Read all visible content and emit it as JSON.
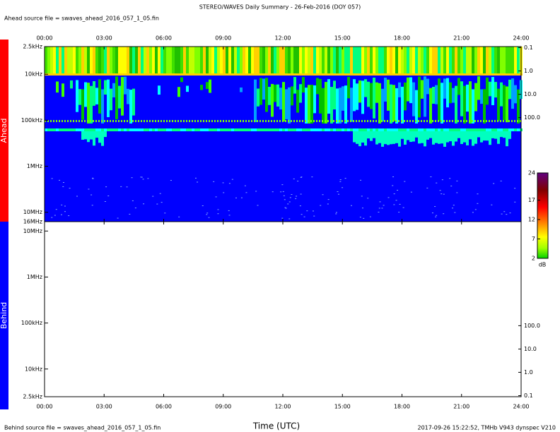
{
  "header": {
    "title": "STEREO/WAVES Daily Summary - 26-Feb-2016 (DOY 057)",
    "ahead_source": "Ahead source file = swaves_ahead_2016_057_1_05.fin",
    "behind_source": "Behind source file = swaves_ahead_2016_057_1_05.fin",
    "stamp": "2017-09-26 15:22:52, TMHb V943 dynspec V210"
  },
  "chart_data": {
    "type": "spectrogram",
    "x_label": "Time (UTC)",
    "xlim": [
      0,
      24
    ],
    "xticks": [
      {
        "value": 0,
        "label": "00:00"
      },
      {
        "value": 3,
        "label": "03:00"
      },
      {
        "value": 6,
        "label": "06:00"
      },
      {
        "value": 9,
        "label": "09:00"
      },
      {
        "value": 12,
        "label": "12:00"
      },
      {
        "value": 15,
        "label": "15:00"
      },
      {
        "value": 18,
        "label": "18:00"
      },
      {
        "value": 21,
        "label": "21:00"
      },
      {
        "value": 24,
        "label": "24:00"
      }
    ],
    "panels": [
      {
        "name": "Ahead",
        "color": "#ff0000",
        "log_y": true,
        "ylim": [
          2500,
          16000000
        ],
        "yticks": [
          {
            "value": 2500,
            "label": "2.5kHz"
          },
          {
            "value": 10000,
            "label": "10kHz"
          },
          {
            "value": 100000,
            "label": "100kHz"
          },
          {
            "value": 1000000,
            "label": "1MHz"
          },
          {
            "value": 10000000,
            "label": "10MHz"
          },
          {
            "value": 16000000,
            "label": "16MHz"
          }
        ],
        "y2lim": [
          0.09,
          2900000
        ],
        "y2ticks": [
          0.1,
          {
            "value": 1,
            "label": "1.0"
          },
          {
            "value": 10,
            "label": "10.0"
          },
          {
            "value": 100,
            "label": "100.0"
          }
        ]
      },
      {
        "name": "Behind",
        "color": "#0000ff",
        "log_y": true,
        "ylim": [
          16000000,
          2500
        ],
        "yticks": [
          {
            "value": 10000000,
            "label": "10MHz"
          },
          {
            "value": 1000000,
            "label": "1MHz"
          },
          {
            "value": 100000,
            "label": "100kHz"
          },
          {
            "value": 10000,
            "label": "10kHz"
          },
          {
            "value": 2500,
            "label": "2.5kHz"
          }
        ],
        "y2lim": [
          2900000,
          0.09
        ],
        "y2ticks": [
          {
            "value": 100,
            "label": "100.0"
          },
          {
            "value": 10,
            "label": "10.0"
          },
          {
            "value": 1,
            "label": "1.0"
          },
          0.1
        ]
      }
    ],
    "colorbar": {
      "zlim": [
        2,
        24
      ],
      "ticks": [
        2,
        7,
        12,
        17,
        24
      ],
      "unit": "dB"
    }
  }
}
